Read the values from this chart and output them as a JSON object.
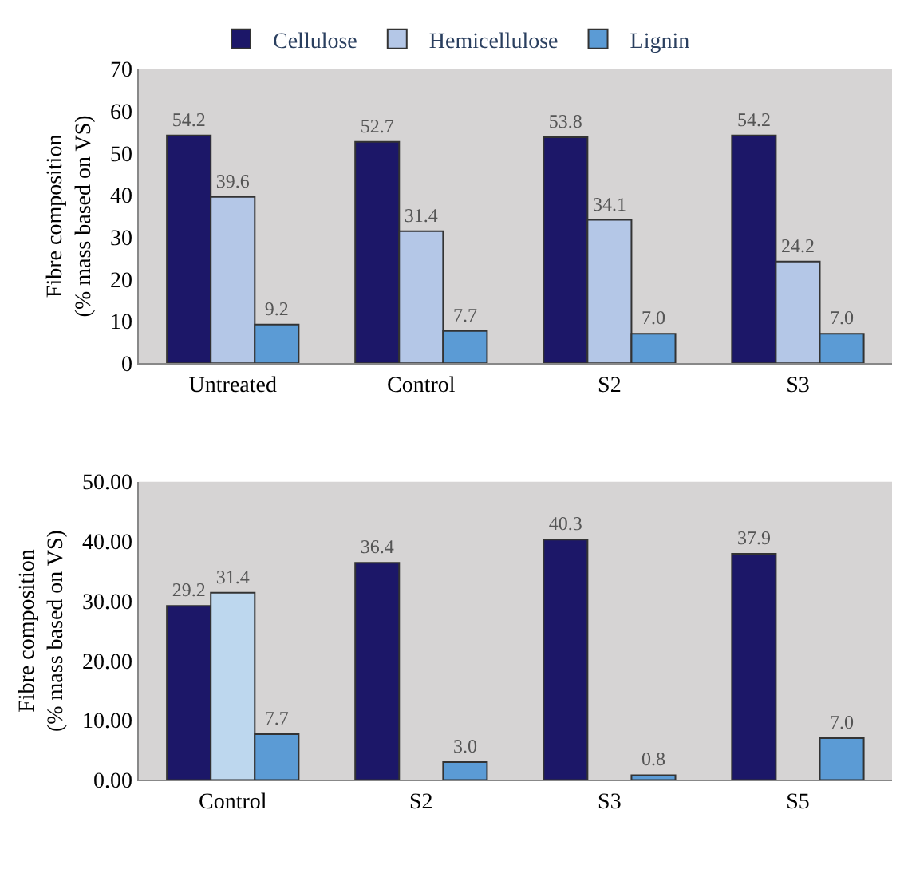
{
  "chart_data": [
    {
      "type": "bar",
      "ylabel": "Fibre composition\n(% mass based on VS)",
      "categories": [
        "Untreated",
        "Control",
        "S2",
        "S3"
      ],
      "ylim": [
        0,
        70
      ],
      "yticks": [
        0,
        10,
        20,
        30,
        40,
        50,
        60,
        70
      ],
      "legend": "top",
      "grid": false,
      "series": [
        {
          "name": "Cellulose",
          "color": "#1c1768",
          "values": [
            54.2,
            52.7,
            53.8,
            54.2
          ],
          "value_labels": [
            "54.2",
            "52.7",
            "53.8",
            "54.2"
          ]
        },
        {
          "name": "Hemicellulose",
          "color": "#b4c7e7",
          "values": [
            39.6,
            31.4,
            34.1,
            24.2
          ],
          "value_labels": [
            "39.6",
            "31.4",
            "34.1",
            "24.2"
          ]
        },
        {
          "name": "Lignin",
          "color": "#5b9bd5",
          "values": [
            9.2,
            7.7,
            7.0,
            7.0
          ],
          "value_labels": [
            "9.2",
            "7.7",
            "7.0",
            "7.0"
          ]
        }
      ]
    },
    {
      "type": "bar",
      "ylabel": "Fibre composition\n(% mass based on VS)",
      "categories": [
        "Control",
        "S2",
        "S3",
        "S5"
      ],
      "ylim": [
        0,
        50
      ],
      "yticks": [
        {
          "value": 0,
          "label": "0.00"
        },
        {
          "value": 10,
          "label": "10.00"
        },
        {
          "value": 20,
          "label": "20.00"
        },
        {
          "value": 30,
          "label": "30.00"
        },
        {
          "value": 40,
          "label": "40.00"
        },
        {
          "value": 50,
          "label": "50.00"
        }
      ],
      "legend": false,
      "grid": false,
      "series": [
        {
          "color": "#1c1768",
          "values": [
            29.2,
            36.4,
            40.3,
            37.9
          ],
          "value_labels": [
            "29.2",
            "36.4",
            "40.3",
            "37.9"
          ]
        },
        {
          "color": "#bdd7ee",
          "values": [
            31.4,
            null,
            null,
            null
          ],
          "value_labels": [
            "31.4",
            null,
            null,
            null
          ]
        },
        {
          "color": "#5b9bd5",
          "values": [
            7.7,
            3.0,
            0.8,
            7.0
          ],
          "value_labels": [
            "7.7",
            "3.0",
            "0.8",
            "7.0"
          ]
        }
      ]
    }
  ]
}
